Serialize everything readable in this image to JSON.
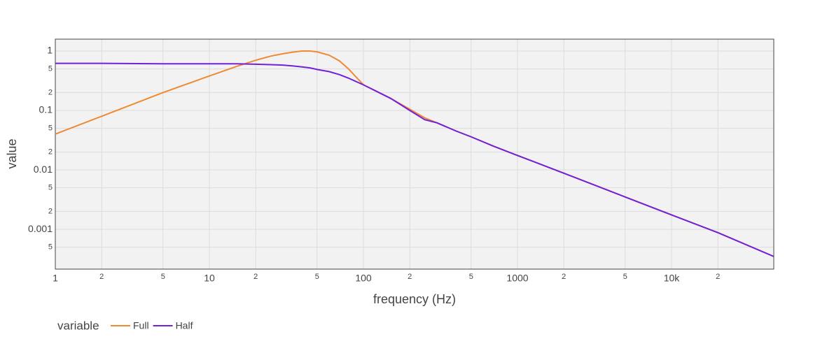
{
  "chart_data": {
    "type": "line",
    "xlabel": "frequency (Hz)",
    "ylabel": "value",
    "xscale": "log",
    "yscale": "log",
    "grid": true,
    "legend_title": "variable",
    "legend_position": "bottom-left",
    "x": [
      1,
      2,
      5,
      10,
      15,
      20,
      25,
      30,
      35,
      40,
      45,
      50,
      60,
      70,
      80,
      100,
      150,
      200,
      250,
      300,
      400,
      500,
      700,
      1000,
      2000,
      5000,
      10000,
      20000,
      46000
    ],
    "series": [
      {
        "name": "Full",
        "color": "#ef8a33",
        "values": [
          0.04,
          0.08,
          0.2,
          0.38,
          0.55,
          0.7,
          0.82,
          0.9,
          0.96,
          1.0,
          1.0,
          0.97,
          0.85,
          0.68,
          0.5,
          0.27,
          0.16,
          0.105,
          0.075,
          0.062,
          0.045,
          0.036,
          0.025,
          0.0175,
          0.0088,
          0.0035,
          0.00175,
          0.00088,
          0.00035
        ]
      },
      {
        "name": "Half",
        "color": "#7321d9",
        "values": [
          0.62,
          0.62,
          0.61,
          0.61,
          0.61,
          0.6,
          0.59,
          0.58,
          0.56,
          0.54,
          0.52,
          0.49,
          0.45,
          0.4,
          0.35,
          0.27,
          0.16,
          0.1,
          0.07,
          0.062,
          0.045,
          0.036,
          0.025,
          0.0175,
          0.0088,
          0.0035,
          0.00175,
          0.00088,
          0.00035
        ]
      }
    ],
    "xlim": [
      1,
      46100
    ],
    "ylim": [
      0.000214,
      1.585
    ],
    "xticks": [
      1,
      {
        "value": 2,
        "label": "2"
      },
      {
        "value": 5,
        "label": "5"
      },
      10,
      {
        "value": 20,
        "label": "2"
      },
      {
        "value": 50,
        "label": "5"
      },
      100,
      {
        "value": 200,
        "label": "2"
      },
      {
        "value": 500,
        "label": "5"
      },
      1000,
      {
        "value": 2000,
        "label": "2"
      },
      {
        "value": 5000,
        "label": "5"
      },
      {
        "value": 10000,
        "label": "10k"
      },
      {
        "value": 20000,
        "label": "2"
      }
    ],
    "yticks": [
      {
        "value": 0.0005,
        "label": "5"
      },
      0.001,
      {
        "value": 0.002,
        "label": "2"
      },
      {
        "value": 0.005,
        "label": "5"
      },
      0.01,
      {
        "value": 0.02,
        "label": "2"
      },
      {
        "value": 0.05,
        "label": "5"
      },
      0.1,
      {
        "value": 0.2,
        "label": "2"
      },
      {
        "value": 0.5,
        "label": "5"
      },
      1
    ]
  }
}
